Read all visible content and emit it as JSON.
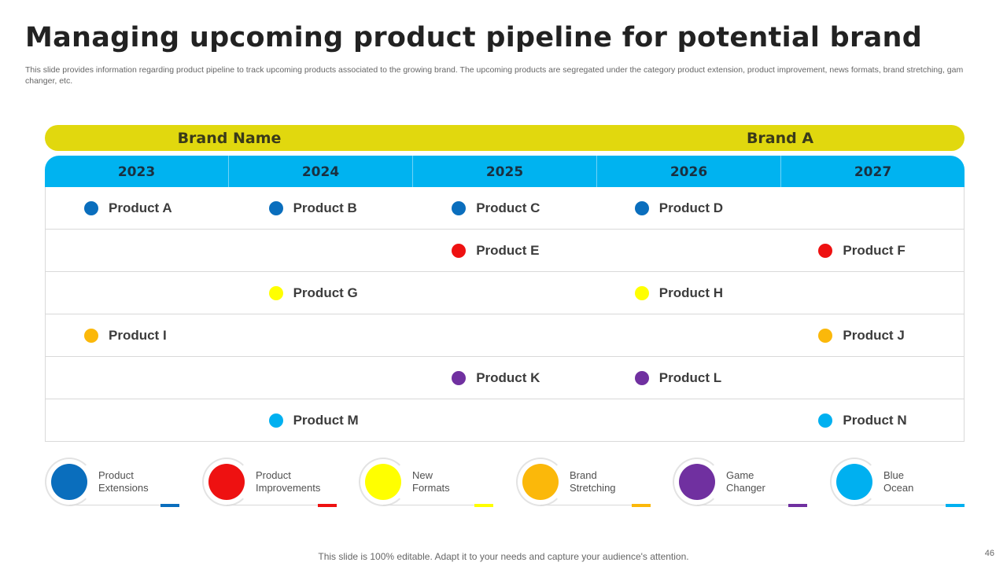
{
  "title": "Managing upcoming product pipeline for potential brand",
  "subtitle": "This slide provides information regarding product pipeline to track upcoming products associated to the growing brand. The upcoming products are segregated under the category product extension, product improvement, news formats, brand stretching, gam changer, etc.",
  "brand": {
    "label": "Brand Name",
    "value": "Brand A"
  },
  "years": [
    "2023",
    "2024",
    "2025",
    "2026",
    "2027"
  ],
  "colors": {
    "extensions": "#0a6ebd",
    "improvements": "#ee1111",
    "formats": "#ffff00",
    "stretching": "#fbb80a",
    "changer": "#7030a0",
    "ocean": "#00b0f0"
  },
  "rows": [
    {
      "category": "extensions",
      "cells": [
        "Product A",
        "Product B",
        "Product C",
        "Product D",
        ""
      ]
    },
    {
      "category": "improvements",
      "cells": [
        "",
        "",
        "Product E",
        "",
        "Product F"
      ]
    },
    {
      "category": "formats",
      "cells": [
        "",
        "Product G",
        "",
        "Product H",
        ""
      ]
    },
    {
      "category": "stretching",
      "cells": [
        "Product I",
        "",
        "",
        "",
        "Product J"
      ]
    },
    {
      "category": "changer",
      "cells": [
        "",
        "",
        "Product K",
        "Product L",
        ""
      ]
    },
    {
      "category": "ocean",
      "cells": [
        "",
        "Product M",
        "",
        "",
        "Product N"
      ]
    }
  ],
  "legend": [
    {
      "key": "extensions",
      "line1": "Product",
      "line2": "Extensions"
    },
    {
      "key": "improvements",
      "line1": "Product",
      "line2": "Improvements"
    },
    {
      "key": "formats",
      "line1": "New",
      "line2": "Formats"
    },
    {
      "key": "stretching",
      "line1": "Brand",
      "line2": "Stretching"
    },
    {
      "key": "changer",
      "line1": "Game",
      "line2": "Changer"
    },
    {
      "key": "ocean",
      "line1": "Blue",
      "line2": "Ocean"
    }
  ],
  "footer": "This slide is 100% editable. Adapt it to your needs and capture your audience's attention.",
  "page_number": "46"
}
